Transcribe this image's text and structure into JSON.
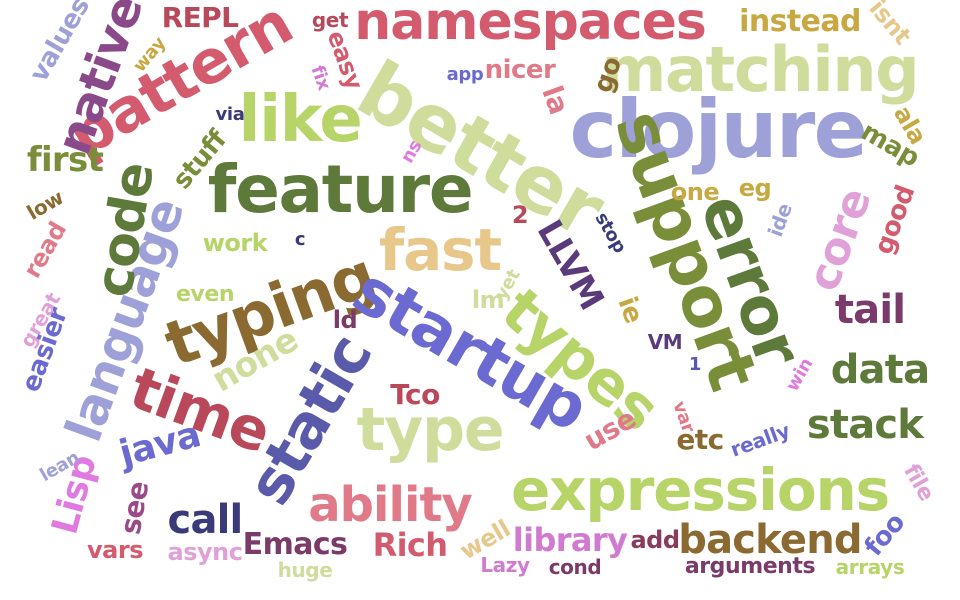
{
  "words": [
    {
      "text": "namespaces",
      "color": "#d45a6e"
    },
    {
      "text": "better",
      "color": "#cfdc9c"
    },
    {
      "text": "clojure",
      "color": "#9ea0d8"
    },
    {
      "text": "matching",
      "color": "#cfdc9c"
    },
    {
      "text": "pattern",
      "color": "#d45a6e"
    },
    {
      "text": "feature",
      "color": "#5e7a3a"
    },
    {
      "text": "like",
      "color": "#b6d468"
    },
    {
      "text": "support",
      "color": "#7a8e3a"
    },
    {
      "text": "error",
      "color": "#5e7a3a"
    },
    {
      "text": "typing",
      "color": "#8a6a30"
    },
    {
      "text": "fast",
      "color": "#e8c88a"
    },
    {
      "text": "startup",
      "color": "#6a6ad0"
    },
    {
      "text": "static",
      "color": "#5a5aaa"
    },
    {
      "text": "types",
      "color": "#b6d468"
    },
    {
      "text": "type",
      "color": "#cfdc9c"
    },
    {
      "text": "language",
      "color": "#9ea0d8"
    },
    {
      "text": "code",
      "color": "#5e7a3a"
    },
    {
      "text": "time",
      "color": "#b8485a"
    },
    {
      "text": "expressions",
      "color": "#b6d468"
    },
    {
      "text": "ability",
      "color": "#e07a88"
    },
    {
      "text": "native",
      "color": "#8a4a8a"
    },
    {
      "text": "core",
      "color": "#e0a0d8"
    },
    {
      "text": "tail",
      "color": "#7a3a6a"
    },
    {
      "text": "data",
      "color": "#5e7a3a"
    },
    {
      "text": "stack",
      "color": "#5e7a3a"
    },
    {
      "text": "backend",
      "color": "#8a6a30"
    },
    {
      "text": "call",
      "color": "#3a3a7a"
    },
    {
      "text": "java",
      "color": "#6a6ad0"
    },
    {
      "text": "Lisp",
      "color": "#e07ae0"
    },
    {
      "text": "first",
      "color": "#7a8e3a"
    },
    {
      "text": "none",
      "color": "#cfdc9c"
    },
    {
      "text": "instead",
      "color": "#c8a840"
    },
    {
      "text": "REPL",
      "color": "#b8485a"
    },
    {
      "text": "nicer",
      "color": "#e07a88"
    },
    {
      "text": "LLVM",
      "color": "#5a3a7a"
    },
    {
      "text": "la",
      "color": "#e07a88"
    },
    {
      "text": "library",
      "color": "#d07ad0"
    },
    {
      "text": "Rich",
      "color": "#d45a6e"
    },
    {
      "text": "Emacs",
      "color": "#7a3a6a"
    },
    {
      "text": "etc",
      "color": "#8a6a30"
    },
    {
      "text": "use",
      "color": "#e07a88"
    },
    {
      "text": "Tco",
      "color": "#b8485a"
    },
    {
      "text": "ld",
      "color": "#7a3a6a"
    },
    {
      "text": "ie",
      "color": "#c8a840"
    },
    {
      "text": "one",
      "color": "#c8a840"
    },
    {
      "text": "eg",
      "color": "#c8a840"
    },
    {
      "text": "good",
      "color": "#d45a6e"
    },
    {
      "text": "map",
      "color": "#7a8e3a"
    },
    {
      "text": "ala",
      "color": "#c8a840"
    },
    {
      "text": "stuff",
      "color": "#7a8e3a"
    },
    {
      "text": "work",
      "color": "#b6d468"
    },
    {
      "text": "even",
      "color": "#b6d468"
    },
    {
      "text": "values",
      "color": "#9ea0d8"
    },
    {
      "text": "easy",
      "color": "#d45a6e"
    },
    {
      "text": "get",
      "color": "#b8485a"
    },
    {
      "text": "go",
      "color": "#8a6a30"
    },
    {
      "text": "app",
      "color": "#6a6ad0"
    },
    {
      "text": "fix",
      "color": "#d07ad0"
    },
    {
      "text": "way",
      "color": "#c8a840"
    },
    {
      "text": "isnt",
      "color": "#e8c88a"
    },
    {
      "text": "via",
      "color": "#3a3a7a"
    },
    {
      "text": "ns",
      "color": "#e07ae0"
    },
    {
      "text": "low",
      "color": "#8a6a30"
    },
    {
      "text": "read",
      "color": "#e07a88"
    },
    {
      "text": "c",
      "color": "#3a3a7a"
    },
    {
      "text": "2",
      "color": "#b8485a"
    },
    {
      "text": "stop",
      "color": "#3a3a7a"
    },
    {
      "text": "ide",
      "color": "#9ea0d8"
    },
    {
      "text": "lm",
      "color": "#cfdc9c"
    },
    {
      "text": "yet",
      "color": "#cfdc9c"
    },
    {
      "text": "1",
      "color": "#5a5aaa"
    },
    {
      "text": "VM",
      "color": "#5a3a7a"
    },
    {
      "text": "win",
      "color": "#e07ae0"
    },
    {
      "text": "great",
      "color": "#e0a0d8"
    },
    {
      "text": "easier",
      "color": "#6a6ad0"
    },
    {
      "text": "lean",
      "color": "#9ea0d8"
    },
    {
      "text": "really",
      "color": "#6a6ad0"
    },
    {
      "text": "var",
      "color": "#e07a88"
    },
    {
      "text": "see",
      "color": "#9a4a8a"
    },
    {
      "text": "vars",
      "color": "#d45a6e"
    },
    {
      "text": "async",
      "color": "#e0a0d8"
    },
    {
      "text": "huge",
      "color": "#cfdc9c"
    },
    {
      "text": "well",
      "color": "#e8c88a"
    },
    {
      "text": "Lazy",
      "color": "#d07ad0"
    },
    {
      "text": "cond",
      "color": "#7a3a6a"
    },
    {
      "text": "add",
      "color": "#8a3a5a"
    },
    {
      "text": "arguments",
      "color": "#7a3a6a"
    },
    {
      "text": "foo",
      "color": "#6a6ad0"
    },
    {
      "text": "arrays",
      "color": "#b6d468"
    },
    {
      "text": "file",
      "color": "#e0a0d8"
    }
  ]
}
